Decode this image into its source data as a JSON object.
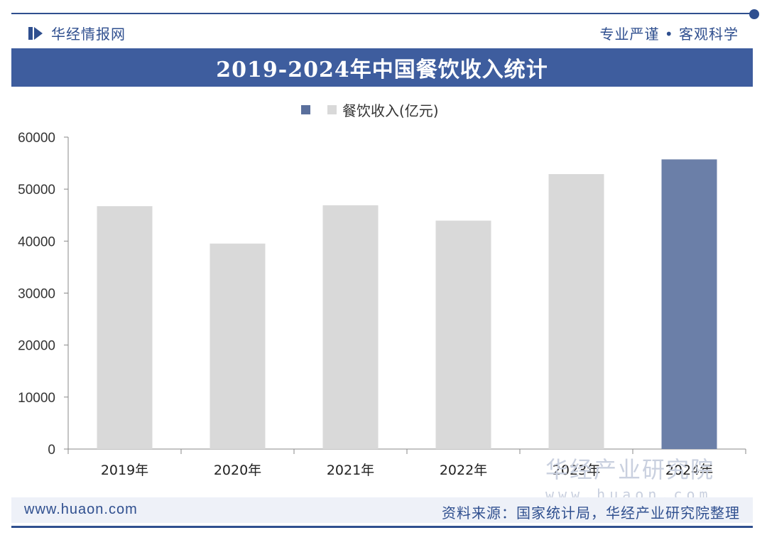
{
  "header": {
    "logo_text": "华经情报网",
    "slogan": "专业严谨 • 客观科学"
  },
  "chart_data": {
    "type": "bar",
    "title": "2019-2024年中国餐饮收入统计",
    "categories": [
      "2019年",
      "2020年",
      "2021年",
      "2022年",
      "2023年",
      "2024年"
    ],
    "series": [
      {
        "name": "餐饮收入(亿元)",
        "values": [
          46721,
          39527,
          46895,
          43941,
          52890,
          55718
        ]
      }
    ],
    "ylim": [
      0,
      60000
    ],
    "yticks": [
      "0",
      "10000",
      "20000",
      "30000",
      "40000",
      "50000",
      "60000"
    ],
    "xlabel": "",
    "ylabel": "",
    "grid": false,
    "legend_position": "top-center",
    "colors": {
      "default_bar": "#d9d9d9",
      "highlight_bar": "#6b7fa8",
      "legend_swatch_primary": "#5a6f9c",
      "legend_swatch_secondary": "#d9d9d9"
    },
    "highlight_index": 5
  },
  "footer": {
    "website": "www.huaon.com",
    "source": "资料来源：国家统计局，华经产业研究院整理"
  },
  "watermark": {
    "cn": "华经产业研究院",
    "en": "www.huaon.com"
  },
  "colors": {
    "brand": "#2f4f8f",
    "title_bar": "#3e5d9e"
  }
}
